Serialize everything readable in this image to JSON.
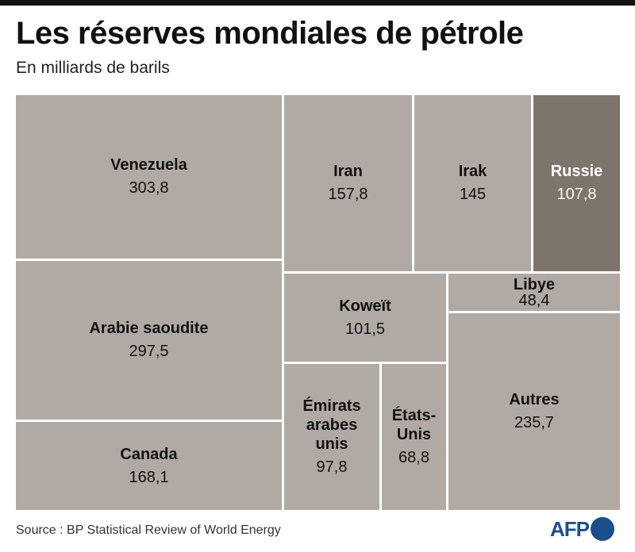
{
  "title": "Les réserves mondiales de pétrole",
  "subtitle": "En milliards de barils",
  "source": "Source : BP Statistical Review of World Energy",
  "logo": "AFP",
  "colors": {
    "cell": "#b1aaa4",
    "highlight": "#7d746c",
    "logo": "#1b4f8c"
  },
  "chart_data": {
    "type": "treemap",
    "title": "Les réserves mondiales de pétrole",
    "unit": "milliards de barils",
    "items": [
      {
        "name": "Venezuela",
        "value": 303.8,
        "label": "303,8"
      },
      {
        "name": "Arabie saoudite",
        "value": 297.5,
        "label": "297,5"
      },
      {
        "name": "Canada",
        "value": 168.1,
        "label": "168,1"
      },
      {
        "name": "Iran",
        "value": 157.8,
        "label": "157,8"
      },
      {
        "name": "Irak",
        "value": 145,
        "label": "145"
      },
      {
        "name": "Russie",
        "value": 107.8,
        "label": "107,8",
        "highlight": true
      },
      {
        "name": "Koweït",
        "value": 101.5,
        "label": "101,5"
      },
      {
        "name": "Émirats\narabes\nunis",
        "value": 97.8,
        "label": "97,8"
      },
      {
        "name": "États-\nUnis",
        "value": 68.8,
        "label": "68,8"
      },
      {
        "name": "Libye",
        "value": 48.4,
        "label": "48,4"
      },
      {
        "name": "Autres",
        "value": 235.7,
        "label": "235,7"
      }
    ]
  }
}
